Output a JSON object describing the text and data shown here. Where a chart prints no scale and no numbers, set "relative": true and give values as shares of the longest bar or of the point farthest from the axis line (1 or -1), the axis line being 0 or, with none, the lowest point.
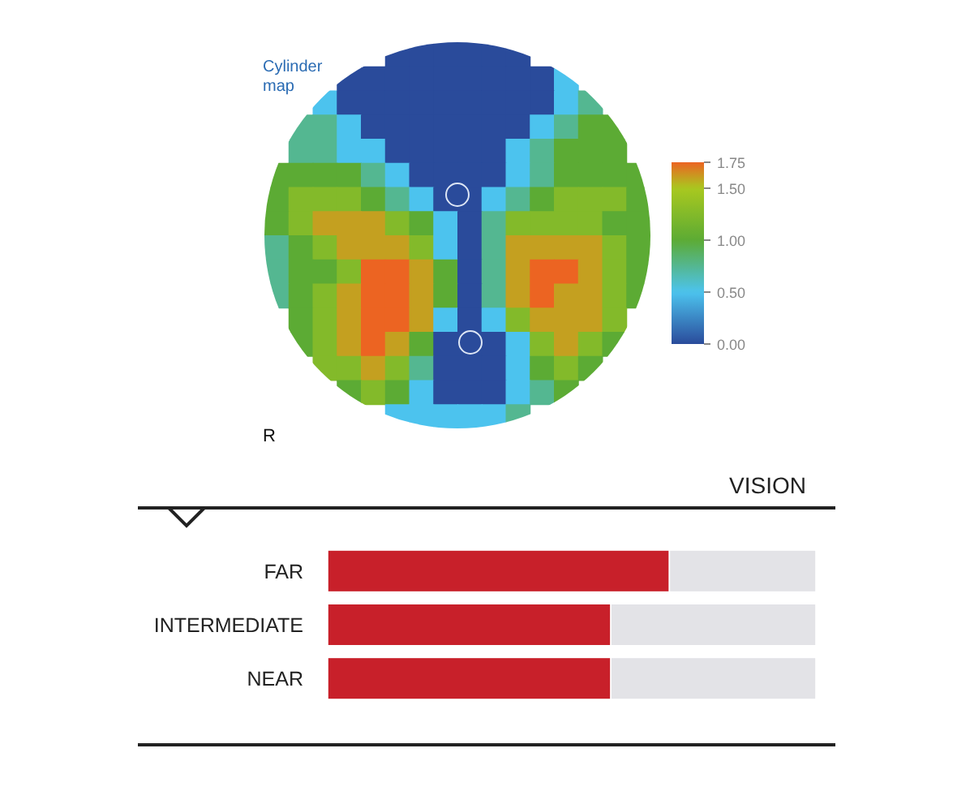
{
  "chart_data": [
    {
      "type": "heatmap",
      "title": "Cylinder map",
      "annotations": [
        "R"
      ],
      "categories": [
        null,
        null,
        null,
        null,
        null,
        null,
        null,
        null,
        null,
        null,
        null,
        null,
        null,
        null,
        null,
        null
      ],
      "y_categories": [
        null,
        null,
        null,
        null,
        null,
        null,
        null,
        null,
        null,
        null,
        null,
        null,
        null,
        null,
        null,
        null
      ],
      "clim": [
        0,
        1.75
      ],
      "cticks": [
        {
          "value": 0,
          "label": "0.00"
        },
        {
          "value": 0.5,
          "label": "0.50"
        },
        {
          "value": 1,
          "label": "1.00"
        },
        {
          "value": 1.5,
          "label": "1.50"
        },
        {
          "value": 1.75,
          "label": "1.75"
        }
      ],
      "cells": [
        [
          null,
          null,
          null,
          null,
          null,
          0,
          0,
          0,
          0,
          0,
          0,
          null,
          null,
          null,
          null,
          null
        ],
        [
          null,
          null,
          null,
          0,
          0,
          0,
          0,
          0,
          0,
          0,
          0,
          0,
          0.5,
          null,
          null,
          null
        ],
        [
          null,
          null,
          0.5,
          0,
          0,
          0,
          0,
          0,
          0,
          0,
          0,
          0,
          0.5,
          0.75,
          null,
          null
        ],
        [
          null,
          0.75,
          0.75,
          0.5,
          0,
          0,
          0,
          0,
          0,
          0,
          0,
          0.5,
          0.75,
          1,
          1,
          null
        ],
        [
          null,
          0.75,
          0.75,
          0.5,
          0.5,
          0,
          0,
          0,
          0,
          0,
          0.5,
          0.75,
          1,
          1,
          1,
          null
        ],
        [
          1,
          1,
          1,
          1,
          0.75,
          0.5,
          0,
          0,
          0,
          0,
          0.5,
          0.75,
          1,
          1,
          1,
          1
        ],
        [
          1,
          1.25,
          1.25,
          1.25,
          1,
          0.75,
          0.5,
          0,
          0,
          0.5,
          0.75,
          1,
          1.25,
          1.25,
          1.25,
          1
        ],
        [
          1,
          1.25,
          1.6,
          1.6,
          1.6,
          1.25,
          1,
          0.5,
          0,
          0.75,
          1.25,
          1.25,
          1.25,
          1.25,
          1,
          1
        ],
        [
          0.75,
          1,
          1.25,
          1.6,
          1.6,
          1.6,
          1.25,
          0.5,
          0,
          0.75,
          1.6,
          1.6,
          1.6,
          1.6,
          1.25,
          1
        ],
        [
          0.75,
          1,
          1,
          1.25,
          1.75,
          1.75,
          1.6,
          1,
          0,
          0.75,
          1.6,
          1.75,
          1.75,
          1.6,
          1.25,
          1
        ],
        [
          0.75,
          1,
          1.25,
          1.6,
          1.75,
          1.75,
          1.6,
          1,
          0,
          0.75,
          1.6,
          1.75,
          1.6,
          1.6,
          1.25,
          1
        ],
        [
          null,
          1,
          1.25,
          1.6,
          1.75,
          1.75,
          1.6,
          0.5,
          0,
          0.5,
          1.25,
          1.6,
          1.6,
          1.6,
          1.25,
          null
        ],
        [
          null,
          1,
          1.25,
          1.6,
          1.75,
          1.6,
          1,
          0,
          0,
          0,
          0.5,
          1.25,
          1.6,
          1.25,
          1,
          null
        ],
        [
          null,
          null,
          1.25,
          1.25,
          1.6,
          1.25,
          0.75,
          0,
          0,
          0,
          0.5,
          1,
          1.25,
          1,
          null,
          null
        ],
        [
          null,
          null,
          null,
          1,
          1.25,
          1,
          0.5,
          0,
          0,
          0,
          0.5,
          0.75,
          1,
          null,
          null,
          null
        ],
        [
          null,
          null,
          null,
          null,
          null,
          0.5,
          0.5,
          0.5,
          0.5,
          0.5,
          0.75,
          null,
          null,
          null,
          null,
          null
        ]
      ]
    },
    {
      "type": "bar",
      "title": "VISION",
      "orientation": "horizontal",
      "stacked": true,
      "relative": true,
      "categories": [
        "FAR",
        "INTERMEDIATE",
        "NEAR"
      ],
      "series": [
        {
          "color": "#c8202a",
          "values": [
            0.7,
            0.58,
            0.58
          ]
        },
        {
          "color": "#e3e3e7",
          "values": [
            0.3,
            0.42,
            0.42
          ]
        }
      ]
    }
  ]
}
